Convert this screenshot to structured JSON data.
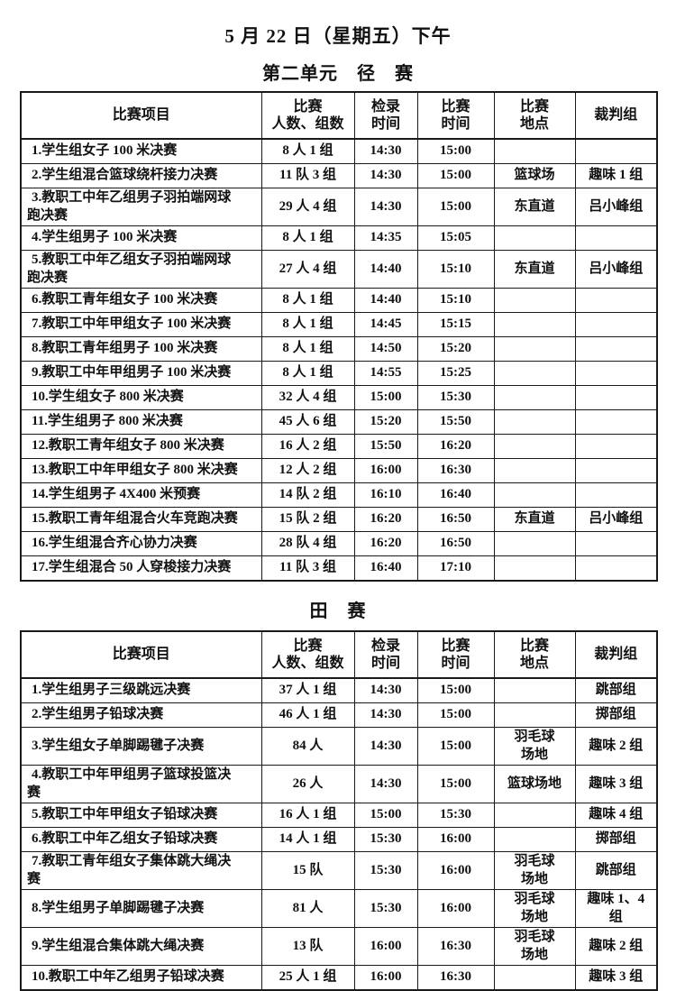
{
  "document": {
    "title": "5 月 22 日（星期五）下午",
    "track_section_title": "第二单元　径　赛",
    "field_section_title": "田　赛"
  },
  "columns": {
    "event": "比赛项目",
    "participants": "比赛\n人数、组数",
    "checkin_time": "检录\n时间",
    "race_time": "比赛\n时间",
    "venue": "比赛\n地点",
    "judges": "裁判组"
  },
  "track_table": {
    "rows": [
      {
        "event": "1.学生组女子 100 米决赛",
        "participants": "8 人 1 组",
        "checkin": "14:30",
        "race": "15:00",
        "venue": "",
        "judges": ""
      },
      {
        "event": "2.学生组混合篮球绕杆接力决赛",
        "participants": "11 队 3 组",
        "checkin": "14:30",
        "race": "15:00",
        "venue": "篮球场",
        "judges": "趣味 1 组"
      },
      {
        "event": "3.教职工中年乙组男子羽拍端网球跑决赛",
        "participants": "29 人 4 组",
        "checkin": "14:30",
        "race": "15:00",
        "venue": "东直道",
        "judges": "吕小峰组"
      },
      {
        "event": "4.学生组男子 100 米决赛",
        "participants": "8 人 1 组",
        "checkin": "14:35",
        "race": "15:05",
        "venue": "",
        "judges": ""
      },
      {
        "event": "5.教职工中年乙组女子羽拍端网球跑决赛",
        "participants": "27 人 4 组",
        "checkin": "14:40",
        "race": "15:10",
        "venue": "东直道",
        "judges": "吕小峰组"
      },
      {
        "event": "6.教职工青年组女子 100 米决赛",
        "participants": "8 人 1 组",
        "checkin": "14:40",
        "race": "15:10",
        "venue": "",
        "judges": ""
      },
      {
        "event": "7.教职工中年甲组女子 100 米决赛",
        "participants": "8 人 1 组",
        "checkin": "14:45",
        "race": "15:15",
        "venue": "",
        "judges": ""
      },
      {
        "event": "8.教职工青年组男子 100 米决赛",
        "participants": "8 人 1 组",
        "checkin": "14:50",
        "race": "15:20",
        "venue": "",
        "judges": ""
      },
      {
        "event": "9.教职工中年甲组男子 100 米决赛",
        "participants": "8 人 1 组",
        "checkin": "14:55",
        "race": "15:25",
        "venue": "",
        "judges": ""
      },
      {
        "event": "10.学生组女子 800 米决赛",
        "participants": "32 人 4 组",
        "checkin": "15:00",
        "race": "15:30",
        "venue": "",
        "judges": ""
      },
      {
        "event": "11.学生组男子 800 米决赛",
        "participants": "45 人 6 组",
        "checkin": "15:20",
        "race": "15:50",
        "venue": "",
        "judges": ""
      },
      {
        "event": "12.教职工青年组女子 800 米决赛",
        "participants": "16 人 2 组",
        "checkin": "15:50",
        "race": "16:20",
        "venue": "",
        "judges": ""
      },
      {
        "event": "13.教职工中年甲组女子 800 米决赛",
        "participants": "12 人 2 组",
        "checkin": "16:00",
        "race": "16:30",
        "venue": "",
        "judges": ""
      },
      {
        "event": "14.学生组男子 4X400 米预赛",
        "participants": "14 队 2 组",
        "checkin": "16:10",
        "race": "16:40",
        "venue": "",
        "judges": ""
      },
      {
        "event": "15.教职工青年组混合火车竞跑决赛",
        "participants": "15 队 2 组",
        "checkin": "16:20",
        "race": "16:50",
        "venue": "东直道",
        "judges": "吕小峰组"
      },
      {
        "event": "16.学生组混合齐心协力决赛",
        "participants": "28 队 4 组",
        "checkin": "16:20",
        "race": "16:50",
        "venue": "",
        "judges": ""
      },
      {
        "event": "17.学生组混合 50 人穿梭接力决赛",
        "participants": "11 队 3 组",
        "checkin": "16:40",
        "race": "17:10",
        "venue": "",
        "judges": ""
      }
    ]
  },
  "field_table": {
    "rows": [
      {
        "event": "1.学生组男子三级跳远决赛",
        "participants": "37 人 1 组",
        "checkin": "14:30",
        "race": "15:00",
        "venue": "",
        "judges": "跳部组"
      },
      {
        "event": "2.学生组男子铅球决赛",
        "participants": "46 人 1 组",
        "checkin": "14:30",
        "race": "15:00",
        "venue": "",
        "judges": "掷部组"
      },
      {
        "event": "3.学生组女子单脚踢毽子决赛",
        "participants": "84 人",
        "checkin": "14:30",
        "race": "15:00",
        "venue": "羽毛球\n场地",
        "judges": "趣味 2 组"
      },
      {
        "event": "4.教职工中年甲组男子篮球投篮决赛",
        "participants": "26 人",
        "checkin": "14:30",
        "race": "15:00",
        "venue": "篮球场地",
        "judges": "趣味 3 组"
      },
      {
        "event": "5.教职工中年甲组女子铅球决赛",
        "participants": "16 人 1 组",
        "checkin": "15:00",
        "race": "15:30",
        "venue": "",
        "judges": "趣味 4 组"
      },
      {
        "event": "6.教职工中年乙组女子铅球决赛",
        "participants": "14 人 1 组",
        "checkin": "15:30",
        "race": "16:00",
        "venue": "",
        "judges": "掷部组"
      },
      {
        "event": "7.教职工青年组女子集体跳大绳决赛",
        "participants": "15 队",
        "checkin": "15:30",
        "race": "16:00",
        "venue": "羽毛球\n场地",
        "judges": "跳部组"
      },
      {
        "event": "8.学生组男子单脚踢毽子决赛",
        "participants": "81 人",
        "checkin": "15:30",
        "race": "16:00",
        "venue": "羽毛球\n场地",
        "judges": "趣味 1、4\n组"
      },
      {
        "event": "9.学生组混合集体跳大绳决赛",
        "participants": "13 队",
        "checkin": "16:00",
        "race": "16:30",
        "venue": "羽毛球\n场地",
        "judges": "趣味 2 组"
      },
      {
        "event": "10.教职工中年乙组男子铅球决赛",
        "participants": "25 人 1 组",
        "checkin": "16:00",
        "race": "16:30",
        "venue": "",
        "judges": "趣味 3 组"
      }
    ]
  }
}
